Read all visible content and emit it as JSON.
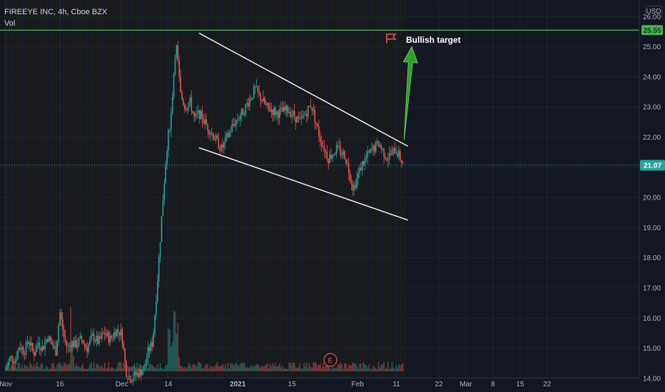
{
  "legend": {
    "symbol_line": "FIREEYE INC, 4h, Cboe BZX",
    "volume_label": "Vol"
  },
  "currency": "USD",
  "annotation": {
    "label": "Bullish target",
    "target_price": 25.55,
    "target_tag": "25.55",
    "earnings_marker": "E"
  },
  "last_price": {
    "value": 21.07,
    "label": "21.07"
  },
  "colors": {
    "up": "#26a69a",
    "down": "#ef5350",
    "target": "#4caf50",
    "arrow": "#2e9e2e",
    "trend": "#ffffff",
    "background": "#131722"
  },
  "chart_data": {
    "type": "candlestick",
    "title": "",
    "xlabel": "",
    "ylabel": "",
    "ylim": [
      13.55,
      26.55
    ],
    "y_ticks": [
      "14.00",
      "15.00",
      "16.00",
      "17.00",
      "18.00",
      "19.00",
      "20.00",
      "21.00",
      "22.00",
      "23.00",
      "24.00",
      "25.00",
      "26.00"
    ],
    "x_ticks": [
      "Nov",
      "16",
      "Dec",
      "14",
      "2021",
      "15",
      "Feb",
      "11",
      "22",
      "Mar",
      "8",
      "15",
      "22"
    ],
    "price_segments": [
      {
        "from": "Nov 2",
        "to": "Nov 14",
        "values": [
          14.3,
          14.7,
          14.6,
          15.1,
          14.9,
          15.3,
          14.8,
          15.2,
          15.0,
          15.4,
          15.1
        ]
      },
      {
        "from": "Nov 14",
        "to": "Nov 20",
        "values": [
          15.1,
          14.9,
          16.2,
          15.4,
          15.0,
          15.2,
          15.1
        ]
      },
      {
        "from": "Nov 20",
        "to": "Dec 2",
        "values": [
          15.1,
          15.3,
          15.0,
          15.4,
          15.2,
          15.5,
          15.3,
          15.6,
          15.5
        ]
      },
      {
        "from": "Dec 2",
        "to": "Dec 10",
        "values": [
          14.6,
          14.2,
          14.0,
          14.1,
          14.2,
          14.3,
          14.9,
          15.2
        ]
      },
      {
        "from": "Dec 10",
        "to": "Dec 22",
        "values": [
          15.2,
          17.2,
          19.5,
          21.6,
          22.8,
          25.2,
          23.4,
          23.0,
          23.2,
          22.6,
          22.8
        ]
      },
      {
        "from": "Dec 22",
        "to": "Jan 20",
        "values": [
          22.8,
          22.2,
          21.6,
          22.4,
          22.9,
          23.6,
          23.0,
          22.8,
          22.9,
          22.5,
          23.1
        ]
      },
      {
        "from": "Jan 20",
        "to": "Feb 13",
        "values": [
          23.1,
          22.0,
          21.3,
          21.6,
          21.4,
          20.3,
          21.1,
          21.5,
          21.8,
          21.3,
          21.6,
          21.07
        ]
      }
    ],
    "trendlines": [
      {
        "name": "upper",
        "from": {
          "x": "Dec 22",
          "y": 25.45
        },
        "to": {
          "x": "Feb 14",
          "y": 21.7
        }
      },
      {
        "name": "lower",
        "from": {
          "x": "Dec 22",
          "y": 21.65
        },
        "to": {
          "x": "Feb 14",
          "y": 19.25
        }
      }
    ],
    "arrow": {
      "from": {
        "x": "Feb 13",
        "y": 21.9
      },
      "to": {
        "x": "Feb 15",
        "y": 25.0
      }
    }
  }
}
